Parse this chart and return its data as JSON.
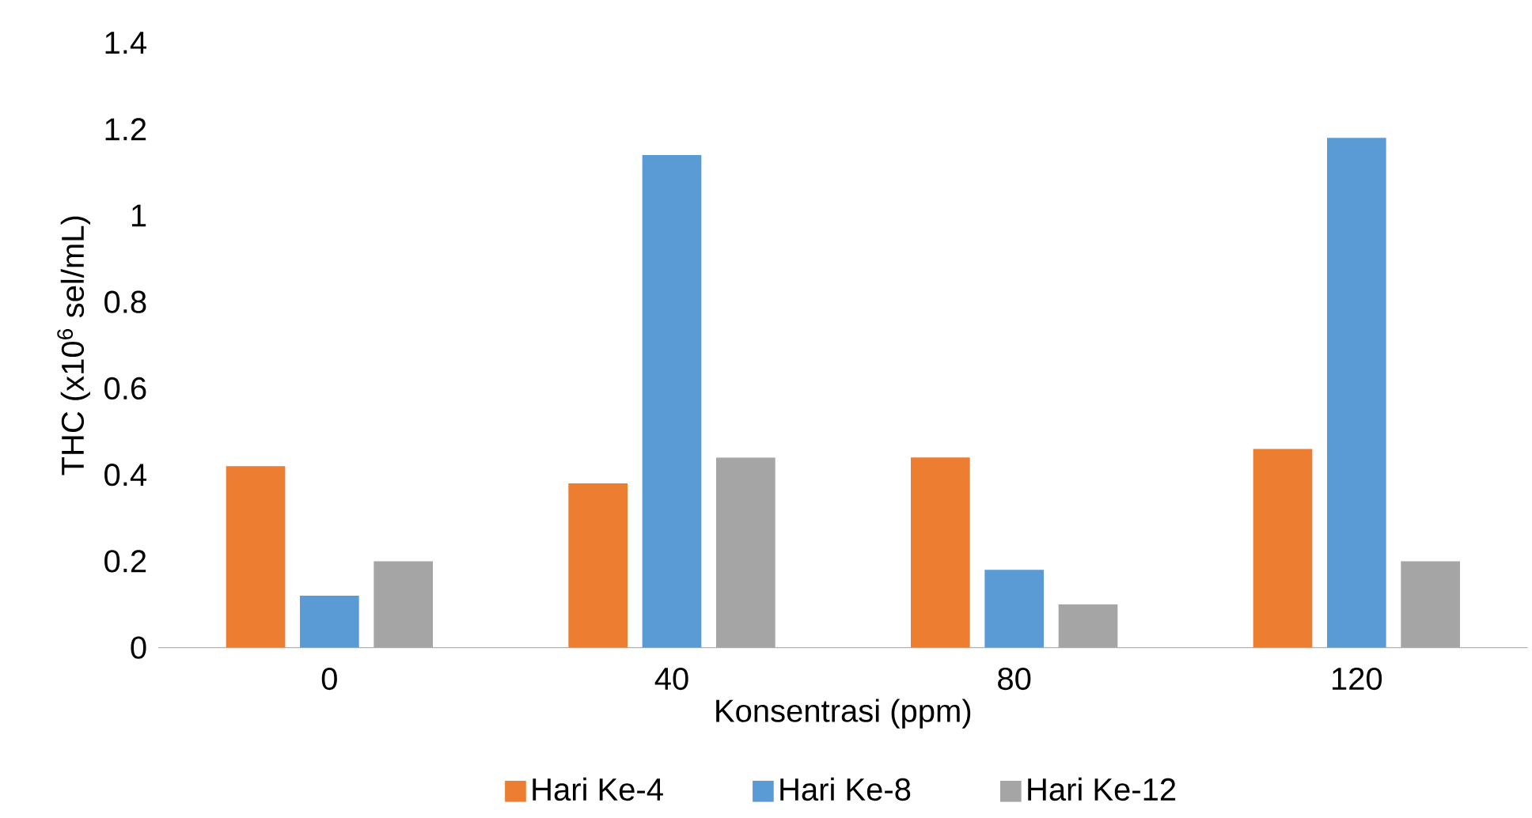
{
  "chart_data": {
    "type": "bar",
    "xlabel": "Konsentrasi (ppm)",
    "ylabel": "THC (x10$^{6}$ sel/mL)",
    "categories": [
      "0",
      "40",
      "80",
      "120"
    ],
    "series": [
      {
        "name": "Hari Ke-4",
        "color": "#ed7d31",
        "values": [
          0.42,
          0.38,
          0.44,
          0.46
        ]
      },
      {
        "name": "Hari Ke-8",
        "color": "#5b9bd5",
        "values": [
          0.12,
          1.14,
          0.18,
          1.18
        ]
      },
      {
        "name": "Hari Ke-12",
        "color": "#a5a5a5",
        "values": [
          0.2,
          0.44,
          0.1,
          0.2
        ]
      }
    ],
    "ylim": [
      0,
      1.4
    ],
    "yticks": [
      0,
      0.2,
      0.4,
      0.6,
      0.8,
      1,
      1.2,
      1.4
    ],
    "legend": "bottom"
  }
}
